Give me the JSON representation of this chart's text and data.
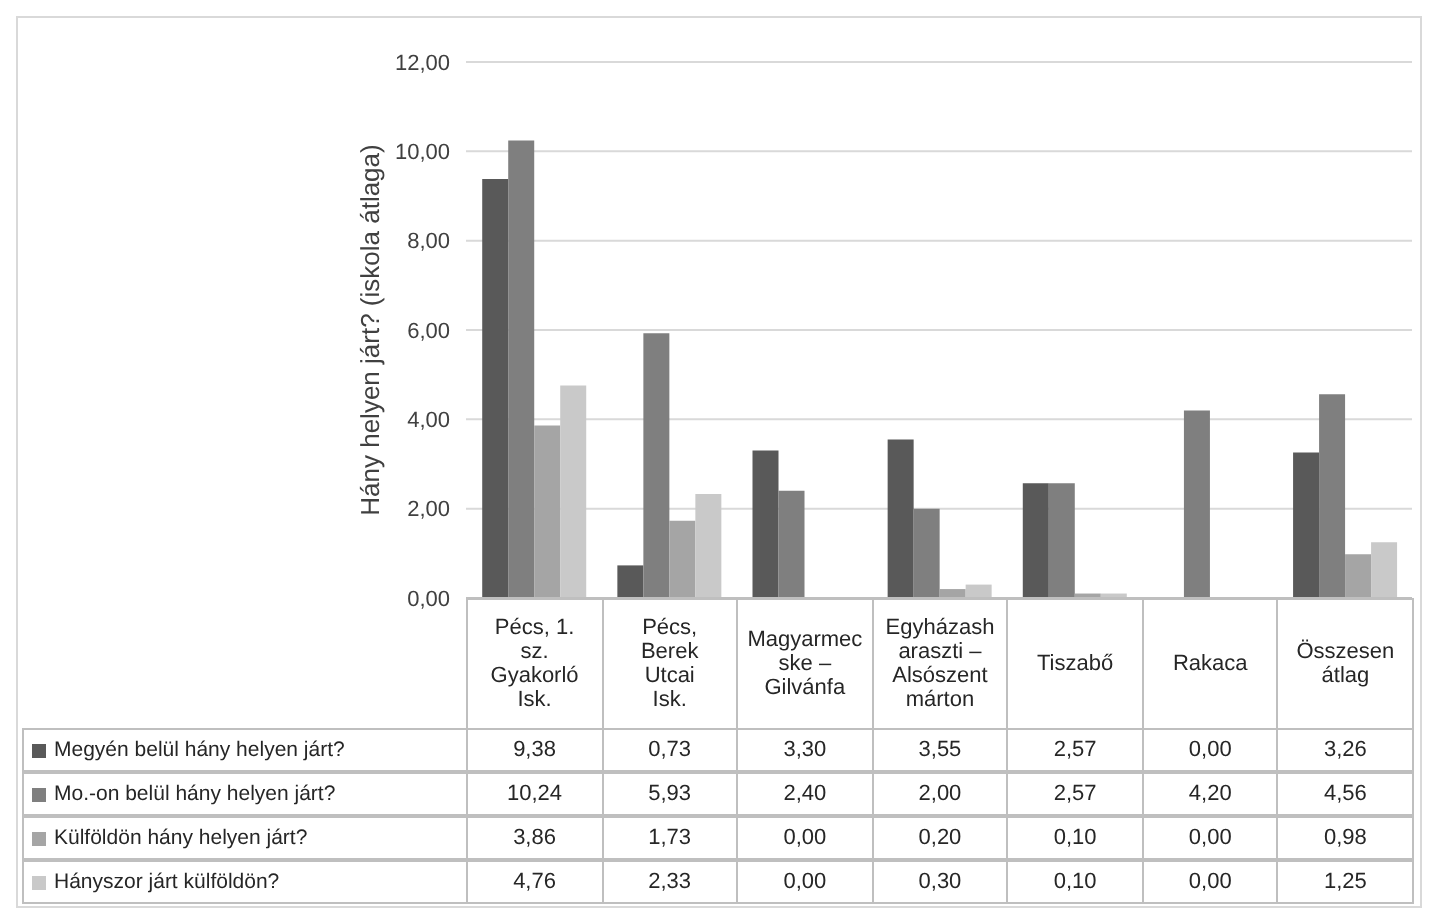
{
  "chart_data": {
    "type": "bar",
    "ylabel": "Hány helyen járt? (iskola átlaga)",
    "categories": [
      "Pécs, 1. sz. Gyakorló Isk.",
      "Pécs, Berek Utcai Isk.",
      "Magyarmecske – Gilvánfa",
      "Egyházasharaszti – Alsószentmárton",
      "Tiszabő",
      "Rakaca",
      "Összesen átlag"
    ],
    "series": [
      {
        "name": "Megyén belül hány helyen járt?",
        "color": "#595959",
        "values": [
          9.38,
          0.73,
          3.3,
          3.55,
          2.57,
          0.0,
          3.26
        ],
        "value_labels": [
          "9,38",
          "0,73",
          "3,30",
          "3,55",
          "2,57",
          "0,00",
          "3,26"
        ]
      },
      {
        "name": "Mo.-on belül hány helyen járt?",
        "color": "#7f7f7f",
        "values": [
          10.24,
          5.93,
          2.4,
          2.0,
          2.57,
          4.2,
          4.56
        ],
        "value_labels": [
          "10,24",
          "5,93",
          "2,40",
          "2,00",
          "2,57",
          "4,20",
          "4,56"
        ]
      },
      {
        "name": "Külföldön hány helyen járt?",
        "color": "#a5a5a5",
        "values": [
          3.86,
          1.73,
          0.0,
          0.2,
          0.1,
          0.0,
          0.98
        ],
        "value_labels": [
          "3,86",
          "1,73",
          "0,00",
          "0,20",
          "0,10",
          "0,00",
          "0,98"
        ]
      },
      {
        "name": "Hányszor járt külföldön?",
        "color": "#c9c9c9",
        "values": [
          4.76,
          2.33,
          0.0,
          0.3,
          0.1,
          0.0,
          1.25
        ],
        "value_labels": [
          "4,76",
          "2,33",
          "0,00",
          "0,30",
          "0,10",
          "0,00",
          "1,25"
        ]
      }
    ],
    "ylim": [
      0,
      12
    ],
    "yticks": [
      {
        "value": 0,
        "label": "0,00"
      },
      {
        "value": 2,
        "label": "2,00"
      },
      {
        "value": 4,
        "label": "4,00"
      },
      {
        "value": 6,
        "label": "6,00"
      },
      {
        "value": 8,
        "label": "8,00"
      },
      {
        "value": 10,
        "label": "10,00"
      },
      {
        "value": 12,
        "label": "12,00"
      }
    ],
    "grid": "y",
    "legend": "bottom"
  }
}
